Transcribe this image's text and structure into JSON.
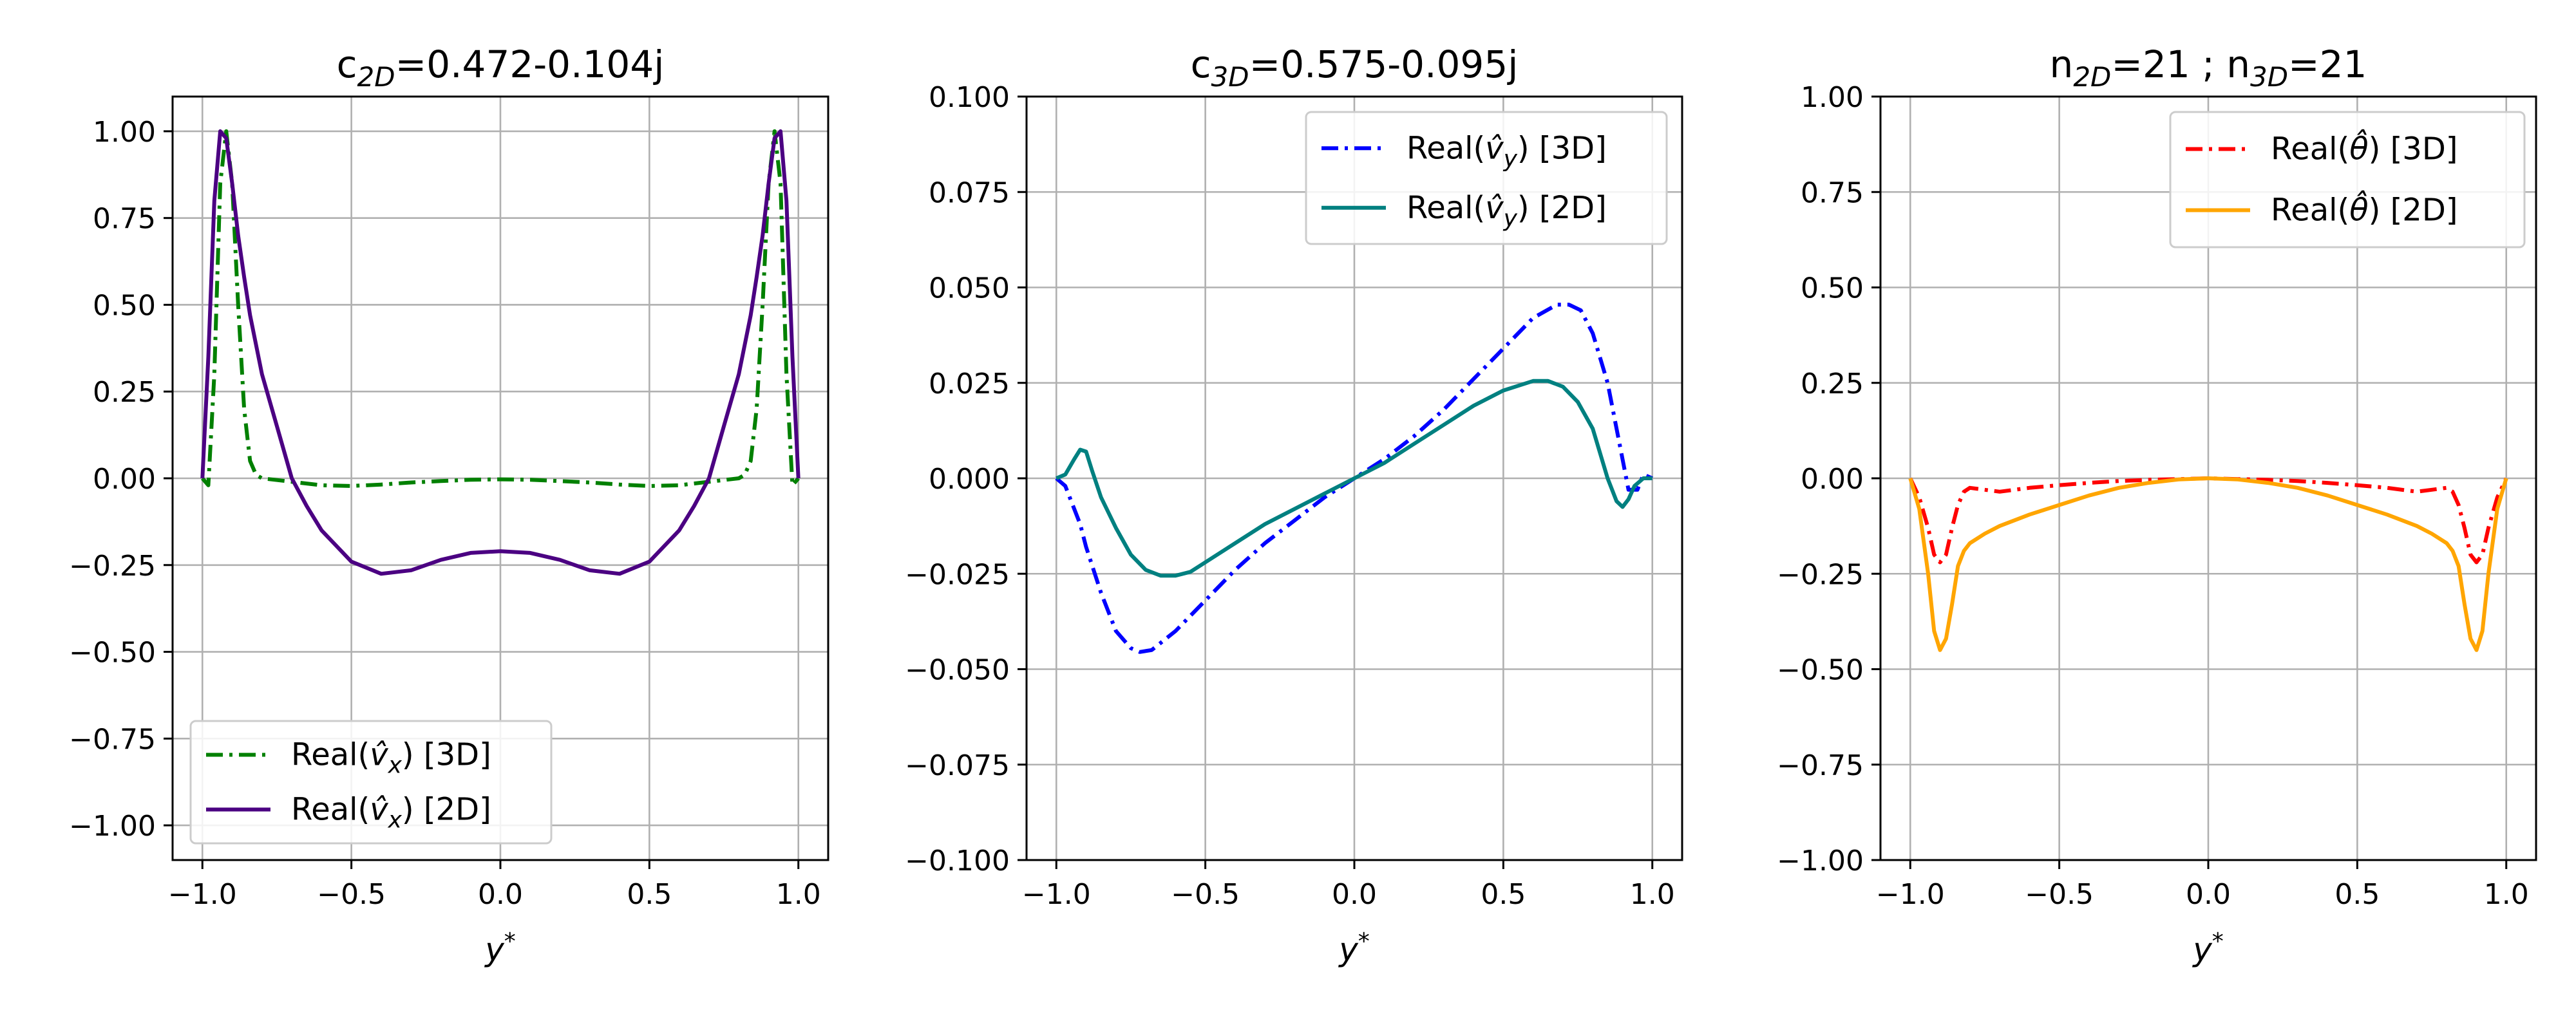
{
  "chart_data": [
    {
      "type": "line",
      "title": "c₂D=0.472-0.104j",
      "title_parts": {
        "base": "c",
        "sub": "2D",
        "rest": "=0.472-0.104j"
      },
      "xlabel": "y*",
      "xlim": [
        -1.1,
        1.1
      ],
      "ylim": [
        -1.1,
        1.1
      ],
      "xticks": [
        -1.0,
        -0.5,
        0.0,
        0.5,
        1.0
      ],
      "xtick_labels": [
        "−1.0",
        "−0.5",
        "0.0",
        "0.5",
        "1.0"
      ],
      "yticks": [
        -1.0,
        -0.75,
        -0.5,
        -0.25,
        0.0,
        0.25,
        0.5,
        0.75,
        1.0
      ],
      "ytick_labels": [
        "−1.00",
        "−0.75",
        "−0.50",
        "−0.25",
        "0.00",
        "0.25",
        "0.50",
        "0.75",
        "1.00"
      ],
      "grid": true,
      "legend_position": "lower-left",
      "series": [
        {
          "name": "Real(v̂ₓ) [3D]",
          "legend": {
            "pre": "Real(",
            "sym": "v",
            "sub": "x",
            "hat": true,
            "post": ") [3D]"
          },
          "color": "#008000",
          "linestyle": "dashdot",
          "x": [
            -1.0,
            -0.98,
            -0.96,
            -0.94,
            -0.92,
            -0.9,
            -0.88,
            -0.86,
            -0.84,
            -0.82,
            -0.8,
            -0.75,
            -0.7,
            -0.6,
            -0.5,
            -0.4,
            -0.3,
            -0.2,
            -0.1,
            0.0,
            0.1,
            0.2,
            0.3,
            0.4,
            0.5,
            0.6,
            0.7,
            0.75,
            0.8,
            0.82,
            0.84,
            0.86,
            0.88,
            0.9,
            0.92,
            0.94,
            0.96,
            0.98,
            1.0
          ],
          "y": [
            0.0,
            -0.02,
            0.3,
            0.85,
            1.0,
            0.85,
            0.5,
            0.2,
            0.05,
            0.01,
            0.0,
            -0.005,
            -0.01,
            -0.02,
            -0.022,
            -0.018,
            -0.012,
            -0.008,
            -0.004,
            -0.003,
            -0.004,
            -0.008,
            -0.012,
            -0.018,
            -0.022,
            -0.02,
            -0.01,
            -0.005,
            0.0,
            0.01,
            0.05,
            0.2,
            0.5,
            0.85,
            1.0,
            0.85,
            0.3,
            -0.02,
            0.0
          ]
        },
        {
          "name": "Real(v̂ₓ) [2D]",
          "legend": {
            "pre": "Real(",
            "sym": "v",
            "sub": "x",
            "hat": true,
            "post": ") [2D]"
          },
          "color": "#4b0082",
          "linestyle": "solid",
          "x": [
            -1.0,
            -0.98,
            -0.96,
            -0.94,
            -0.92,
            -0.9,
            -0.88,
            -0.86,
            -0.84,
            -0.8,
            -0.75,
            -0.7,
            -0.65,
            -0.6,
            -0.5,
            -0.4,
            -0.3,
            -0.2,
            -0.1,
            0.0,
            0.1,
            0.2,
            0.3,
            0.4,
            0.5,
            0.6,
            0.65,
            0.7,
            0.75,
            0.8,
            0.84,
            0.86,
            0.88,
            0.9,
            0.92,
            0.94,
            0.96,
            0.98,
            1.0
          ],
          "y": [
            0.0,
            0.35,
            0.8,
            1.0,
            0.98,
            0.85,
            0.7,
            0.58,
            0.47,
            0.3,
            0.15,
            0.0,
            -0.08,
            -0.15,
            -0.24,
            -0.275,
            -0.265,
            -0.235,
            -0.215,
            -0.21,
            -0.215,
            -0.235,
            -0.265,
            -0.275,
            -0.24,
            -0.15,
            -0.08,
            0.0,
            0.15,
            0.3,
            0.47,
            0.58,
            0.7,
            0.85,
            0.98,
            1.0,
            0.8,
            0.35,
            0.0
          ]
        }
      ]
    },
    {
      "type": "line",
      "title": "c₃D=0.575-0.095j",
      "title_parts": {
        "base": "c",
        "sub": "3D",
        "rest": "=0.575-0.095j"
      },
      "xlabel": "y*",
      "xlim": [
        -1.1,
        1.1
      ],
      "ylim": [
        -0.1,
        0.1
      ],
      "xticks": [
        -1.0,
        -0.5,
        0.0,
        0.5,
        1.0
      ],
      "xtick_labels": [
        "−1.0",
        "−0.5",
        "0.0",
        "0.5",
        "1.0"
      ],
      "yticks": [
        -0.1,
        -0.075,
        -0.05,
        -0.025,
        0.0,
        0.025,
        0.05,
        0.075,
        0.1
      ],
      "ytick_labels": [
        "−0.100",
        "−0.075",
        "−0.050",
        "−0.025",
        "0.000",
        "0.025",
        "0.050",
        "0.075",
        "0.100"
      ],
      "grid": true,
      "legend_position": "upper-right",
      "series": [
        {
          "name": "Real(v̂_y) [3D]",
          "legend": {
            "pre": "Real(",
            "sym": "v",
            "sub": "y",
            "hat": true,
            "post": ") [3D]"
          },
          "color": "#0000ff",
          "linestyle": "dashdot",
          "x": [
            -1.0,
            -0.97,
            -0.95,
            -0.92,
            -0.9,
            -0.85,
            -0.8,
            -0.75,
            -0.72,
            -0.68,
            -0.6,
            -0.5,
            -0.4,
            -0.3,
            -0.2,
            -0.1,
            0.0,
            0.1,
            0.2,
            0.3,
            0.4,
            0.5,
            0.6,
            0.68,
            0.72,
            0.76,
            0.8,
            0.85,
            0.88,
            0.9,
            0.92,
            0.95,
            0.97,
            1.0
          ],
          "y": [
            0.0,
            -0.002,
            -0.006,
            -0.012,
            -0.018,
            -0.03,
            -0.04,
            -0.0445,
            -0.0455,
            -0.045,
            -0.04,
            -0.032,
            -0.024,
            -0.017,
            -0.011,
            -0.005,
            0.0,
            0.005,
            0.011,
            0.018,
            0.026,
            0.034,
            0.042,
            0.0455,
            0.0455,
            0.044,
            0.038,
            0.025,
            0.013,
            0.005,
            -0.003,
            -0.003,
            0.001,
            0.0
          ]
        },
        {
          "name": "Real(v̂_y) [2D]",
          "legend": {
            "pre": "Real(",
            "sym": "v",
            "sub": "y",
            "hat": true,
            "post": ") [2D]"
          },
          "color": "#008080",
          "linestyle": "solid",
          "x": [
            -1.0,
            -0.97,
            -0.94,
            -0.92,
            -0.9,
            -0.88,
            -0.85,
            -0.8,
            -0.75,
            -0.7,
            -0.65,
            -0.6,
            -0.55,
            -0.5,
            -0.4,
            -0.3,
            -0.2,
            -0.1,
            0.0,
            0.1,
            0.2,
            0.3,
            0.4,
            0.5,
            0.6,
            0.65,
            0.7,
            0.75,
            0.8,
            0.85,
            0.88,
            0.9,
            0.92,
            0.94,
            0.97,
            1.0
          ],
          "y": [
            0.0,
            0.001,
            0.005,
            0.0075,
            0.007,
            0.002,
            -0.005,
            -0.013,
            -0.02,
            -0.024,
            -0.0255,
            -0.0255,
            -0.0245,
            -0.022,
            -0.017,
            -0.012,
            -0.008,
            -0.004,
            0.0,
            0.004,
            0.009,
            0.014,
            0.019,
            0.023,
            0.0255,
            0.0255,
            0.024,
            0.02,
            0.013,
            0.0,
            -0.006,
            -0.0075,
            -0.0055,
            -0.002,
            0.0,
            0.0
          ]
        }
      ]
    },
    {
      "type": "line",
      "title": "n₂D=21 ; n₃D=21",
      "title_parts": {
        "a": "n",
        "a_sub": "2D",
        "a_rest": "=21 ; ",
        "b": "n",
        "b_sub": "3D",
        "b_rest": "=21"
      },
      "xlabel": "y*",
      "xlim": [
        -1.1,
        1.1
      ],
      "ylim": [
        -1.0,
        1.0
      ],
      "xticks": [
        -1.0,
        -0.5,
        0.0,
        0.5,
        1.0
      ],
      "xtick_labels": [
        "−1.0",
        "−0.5",
        "0.0",
        "0.5",
        "1.0"
      ],
      "yticks": [
        -1.0,
        -0.75,
        -0.5,
        -0.25,
        0.0,
        0.25,
        0.5,
        0.75,
        1.0
      ],
      "ytick_labels": [
        "−1.00",
        "−0.75",
        "−0.50",
        "−0.25",
        "0.00",
        "0.25",
        "0.50",
        "0.75",
        "1.00"
      ],
      "grid": true,
      "legend_position": "upper-right",
      "series": [
        {
          "name": "Real(θ̂) [3D]",
          "legend": {
            "pre": "Real(",
            "sym": "θ",
            "sub": "",
            "hat": true,
            "post": ") [3D]"
          },
          "color": "#ff0000",
          "linestyle": "dashdot",
          "x": [
            -1.0,
            -0.97,
            -0.94,
            -0.92,
            -0.9,
            -0.88,
            -0.86,
            -0.84,
            -0.82,
            -0.8,
            -0.75,
            -0.7,
            -0.6,
            -0.5,
            -0.4,
            -0.3,
            -0.2,
            -0.1,
            0.0,
            0.1,
            0.2,
            0.3,
            0.4,
            0.5,
            0.6,
            0.7,
            0.75,
            0.8,
            0.82,
            0.84,
            0.86,
            0.88,
            0.9,
            0.92,
            0.94,
            0.97,
            1.0
          ],
          "y": [
            0.0,
            -0.05,
            -0.13,
            -0.2,
            -0.22,
            -0.2,
            -0.13,
            -0.07,
            -0.035,
            -0.025,
            -0.03,
            -0.035,
            -0.025,
            -0.018,
            -0.012,
            -0.007,
            -0.004,
            -0.002,
            0.0,
            -0.002,
            -0.004,
            -0.007,
            -0.012,
            -0.018,
            -0.025,
            -0.035,
            -0.03,
            -0.025,
            -0.035,
            -0.07,
            -0.13,
            -0.2,
            -0.22,
            -0.2,
            -0.13,
            -0.05,
            0.0
          ]
        },
        {
          "name": "Real(θ̂) [2D]",
          "legend": {
            "pre": "Real(",
            "sym": "θ",
            "sub": "",
            "hat": true,
            "post": ") [2D]"
          },
          "color": "#ffa500",
          "linestyle": "solid",
          "x": [
            -1.0,
            -0.97,
            -0.94,
            -0.92,
            -0.9,
            -0.88,
            -0.86,
            -0.84,
            -0.82,
            -0.8,
            -0.75,
            -0.7,
            -0.6,
            -0.5,
            -0.4,
            -0.3,
            -0.2,
            -0.1,
            0.0,
            0.1,
            0.2,
            0.3,
            0.4,
            0.5,
            0.6,
            0.7,
            0.75,
            0.8,
            0.82,
            0.84,
            0.86,
            0.88,
            0.9,
            0.92,
            0.94,
            0.97,
            1.0
          ],
          "y": [
            0.0,
            -0.08,
            -0.25,
            -0.4,
            -0.45,
            -0.42,
            -0.33,
            -0.23,
            -0.19,
            -0.17,
            -0.145,
            -0.125,
            -0.095,
            -0.07,
            -0.045,
            -0.025,
            -0.012,
            -0.003,
            0.0,
            -0.003,
            -0.012,
            -0.025,
            -0.045,
            -0.07,
            -0.095,
            -0.125,
            -0.145,
            -0.17,
            -0.19,
            -0.23,
            -0.33,
            -0.42,
            -0.45,
            -0.4,
            -0.25,
            -0.08,
            0.0
          ]
        }
      ]
    }
  ]
}
